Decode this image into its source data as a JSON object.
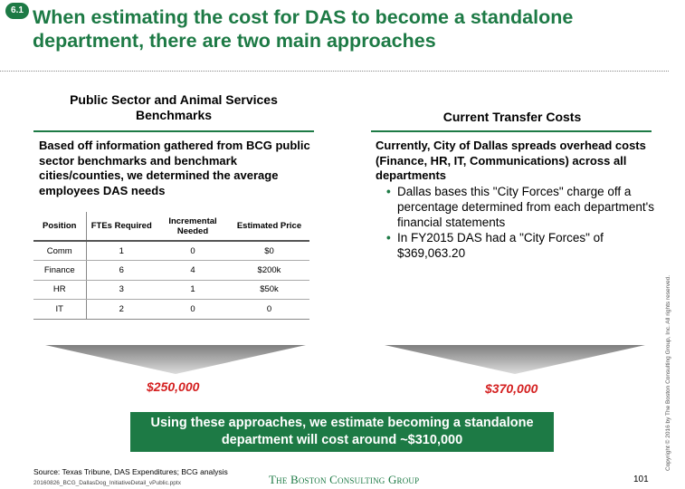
{
  "badge": "6.1",
  "title": "When estimating the cost for DAS to become a standalone department, there are two main approaches",
  "left": {
    "heading": "Public Sector and Animal Services Benchmarks",
    "lead": "Based off information gathered from BCG public sector benchmarks and benchmark cities/counties, we determined the average employees DAS needs",
    "table": {
      "headers": [
        "Position",
        "FTEs Required",
        "Incremental Needed",
        "Estimated Price"
      ],
      "rows": [
        [
          "Comm",
          "1",
          "0",
          "$0"
        ],
        [
          "Finance",
          "6",
          "4",
          "$200k"
        ],
        [
          "HR",
          "3",
          "1",
          "$50k"
        ],
        [
          "IT",
          "2",
          "0",
          "0"
        ]
      ]
    },
    "total": "$250,000"
  },
  "right": {
    "heading": "Current Transfer Costs",
    "lead": "Currently, City of Dallas spreads overhead costs (Finance, HR, IT, Communications) across all departments",
    "bullets": [
      "Dallas bases this \"City Forces\" charge off a percentage determined from each department's financial statements",
      "In FY2015 DAS had a \"City Forces\" of $369,063.20"
    ],
    "total": "$370,000"
  },
  "conclusion": "Using these approaches, we estimate becoming a standalone department will cost around ~$310,000",
  "footer": {
    "source": "Source: Texas Tribune, DAS Expenditures; BCG analysis",
    "filename": "20160826_BCG_DallasDog_InitiativeDetail_vPublic.pptx",
    "logo": "The Boston Consulting Group",
    "page": "101",
    "copyright": "Copyright © 2016 by The Boston Consulting Group, Inc. All rights reserved."
  },
  "colors": {
    "brand_green": "#1d7a45",
    "amount_red": "#d42020"
  }
}
